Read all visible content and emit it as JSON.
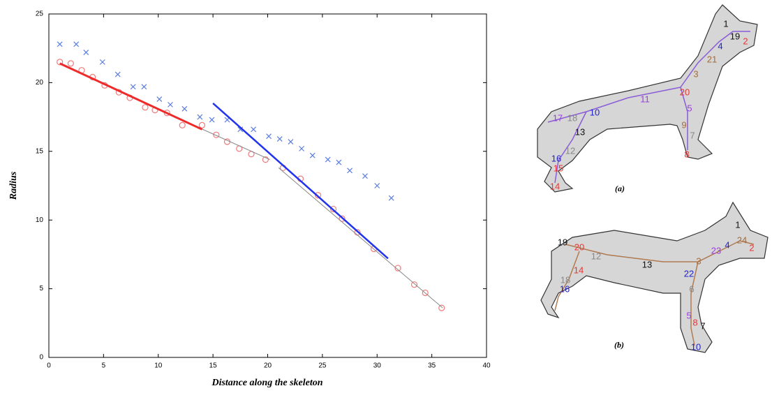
{
  "chart_data": {
    "type": "scatter",
    "xlabel": "Distance along the skeleton",
    "ylabel": "Radius",
    "xlim": [
      0,
      40
    ],
    "ylim": [
      0,
      25
    ],
    "xticks": [
      0,
      5,
      10,
      15,
      20,
      25,
      30,
      35,
      40
    ],
    "yticks": [
      0,
      5,
      10,
      15,
      20,
      25
    ],
    "grid": false,
    "series": [
      {
        "color": "#5a7de0",
        "marker": "x",
        "x": [
          1.0,
          2.5,
          3.4,
          4.9,
          6.3,
          7.7,
          8.7,
          10.1,
          11.1,
          12.4,
          13.8,
          14.9,
          16.3,
          17.5,
          18.7,
          20.1,
          21.1,
          22.1,
          23.1,
          24.1,
          25.5,
          26.5,
          27.5,
          28.9,
          30.0,
          31.3
        ],
        "values": [
          22.8,
          22.8,
          22.2,
          21.5,
          20.6,
          19.7,
          19.7,
          18.8,
          18.4,
          18.1,
          17.5,
          17.3,
          17.3,
          16.6,
          16.6,
          16.1,
          15.9,
          15.7,
          15.2,
          14.7,
          14.4,
          14.2,
          13.6,
          13.2,
          12.5,
          11.6
        ]
      },
      {
        "color": "#f07a7a",
        "marker": "o",
        "x": [
          1.0,
          2.0,
          3.0,
          4.0,
          5.1,
          6.4,
          7.4,
          8.8,
          9.7,
          10.8,
          12.2,
          14.0,
          15.3,
          16.3,
          17.4,
          18.5,
          19.8,
          21.4,
          23.0,
          24.6,
          26.0,
          26.8,
          28.2,
          29.7,
          31.9,
          33.4,
          34.4,
          35.9
        ],
        "values": [
          21.5,
          21.4,
          20.9,
          20.4,
          19.8,
          19.3,
          18.9,
          18.2,
          18.0,
          17.8,
          16.9,
          16.9,
          16.2,
          15.7,
          15.2,
          14.8,
          14.4,
          13.8,
          13.0,
          11.8,
          10.8,
          10.1,
          9.1,
          7.9,
          6.5,
          5.3,
          4.7,
          3.6
        ]
      },
      {
        "color": "#888888",
        "marker": "line",
        "width": 1,
        "x": [
          13.5,
          20.2,
          null,
          21.0,
          36.0
        ],
        "values": [
          16.8,
          14.4,
          null,
          13.8,
          3.6
        ]
      },
      {
        "color": "#ee2a2a",
        "marker": "line",
        "width": 3,
        "x": [
          1.0,
          14.0
        ],
        "values": [
          21.4,
          16.6
        ]
      },
      {
        "color": "#2233ee",
        "marker": "line",
        "width": 2.5,
        "x": [
          15.0,
          31.0
        ],
        "values": [
          18.5,
          7.2
        ]
      }
    ]
  },
  "figure": {
    "panels": [
      {
        "caption": "(a)",
        "labels": [
          "1",
          "19",
          "2",
          "4",
          "21",
          "3",
          "20",
          "11",
          "10",
          "5",
          "18",
          "17",
          "13",
          "9",
          "7",
          "12",
          "16",
          "15",
          "8",
          "14"
        ]
      },
      {
        "caption": "(b)",
        "labels": [
          "1",
          "24",
          "2",
          "4",
          "23",
          "19",
          "20",
          "12",
          "13",
          "3",
          "22",
          "14",
          "18",
          "16",
          "6",
          "5",
          "8",
          "7",
          "10"
        ]
      }
    ]
  }
}
